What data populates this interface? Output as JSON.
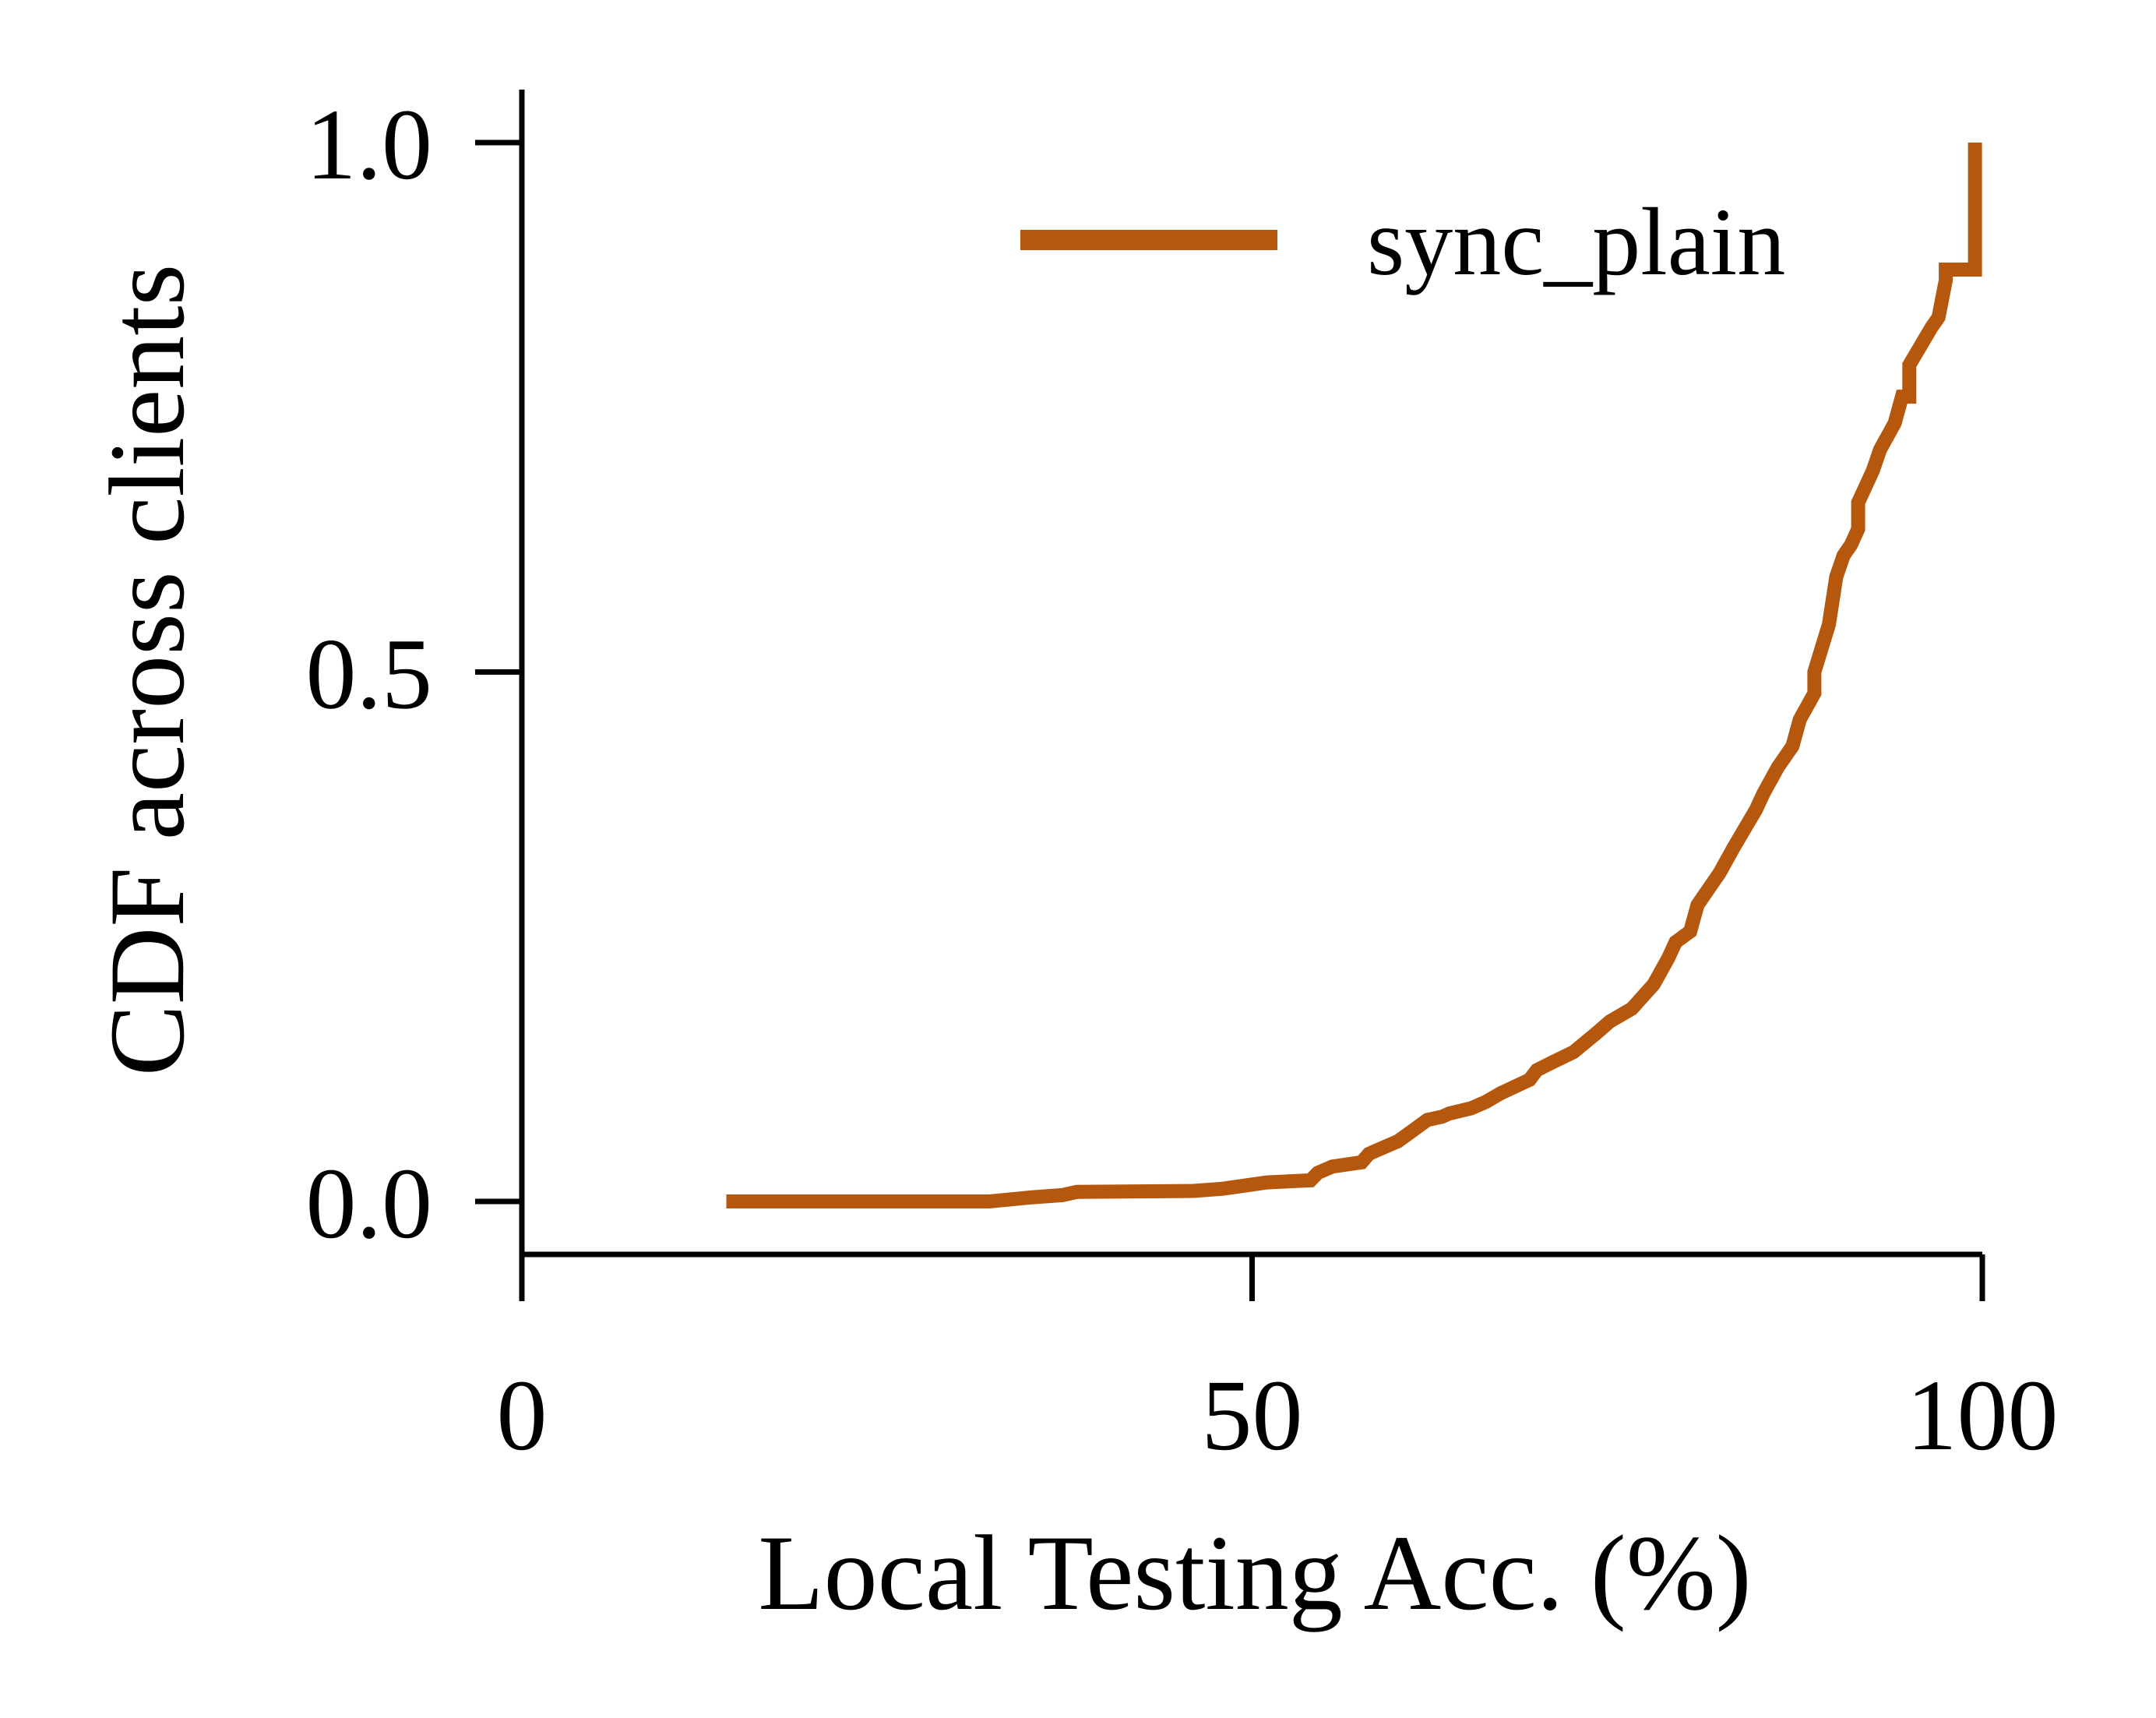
{
  "chart_data": {
    "type": "line",
    "title": "",
    "xlabel": "Local Testing Acc. (%)",
    "ylabel": "CDF across clients",
    "xlim": [
      0,
      100
    ],
    "ylim": [
      -0.05,
      1.05
    ],
    "xticks": [
      0,
      50,
      100
    ],
    "xtick_labels": [
      "0",
      "50",
      "100"
    ],
    "yticks": [
      0.0,
      0.5,
      1.0
    ],
    "ytick_labels": [
      "0.0",
      "0.5",
      "1.0"
    ],
    "grid": false,
    "legend_position": "top-right",
    "series": [
      {
        "name": "sync_plain",
        "color": "#b5570c",
        "x": [
          14,
          32,
          35,
          37,
          38,
          46,
          48,
          50,
          51,
          54,
          54.5,
          55.5,
          57.5,
          58,
          58.5,
          60,
          61,
          62,
          63,
          63.5,
          65,
          66,
          67,
          69,
          69.5,
          70.5,
          72,
          73.5,
          74.5,
          76,
          77.5,
          78.5,
          79,
          80,
          80.5,
          81.5,
          82,
          83,
          84.5,
          85,
          86,
          87,
          87.5,
          88.5,
          88.5,
          89.5,
          90,
          90.5,
          91,
          91.5,
          91.5,
          92.5,
          93,
          94,
          94.5,
          95,
          95,
          96.5,
          97,
          97.5,
          97.5,
          99.5,
          99.5
        ],
        "y": [
          0.0,
          0.0,
          0.004,
          0.006,
          0.009,
          0.01,
          0.012,
          0.016,
          0.018,
          0.02,
          0.027,
          0.033,
          0.037,
          0.045,
          0.048,
          0.057,
          0.067,
          0.077,
          0.08,
          0.083,
          0.088,
          0.094,
          0.102,
          0.115,
          0.124,
          0.131,
          0.141,
          0.158,
          0.17,
          0.182,
          0.205,
          0.23,
          0.245,
          0.255,
          0.28,
          0.3,
          0.31,
          0.335,
          0.37,
          0.385,
          0.41,
          0.43,
          0.455,
          0.48,
          0.5,
          0.545,
          0.59,
          0.61,
          0.62,
          0.635,
          0.66,
          0.69,
          0.71,
          0.735,
          0.76,
          0.76,
          0.79,
          0.825,
          0.835,
          0.87,
          0.88,
          0.88,
          1.0
        ]
      }
    ]
  }
}
